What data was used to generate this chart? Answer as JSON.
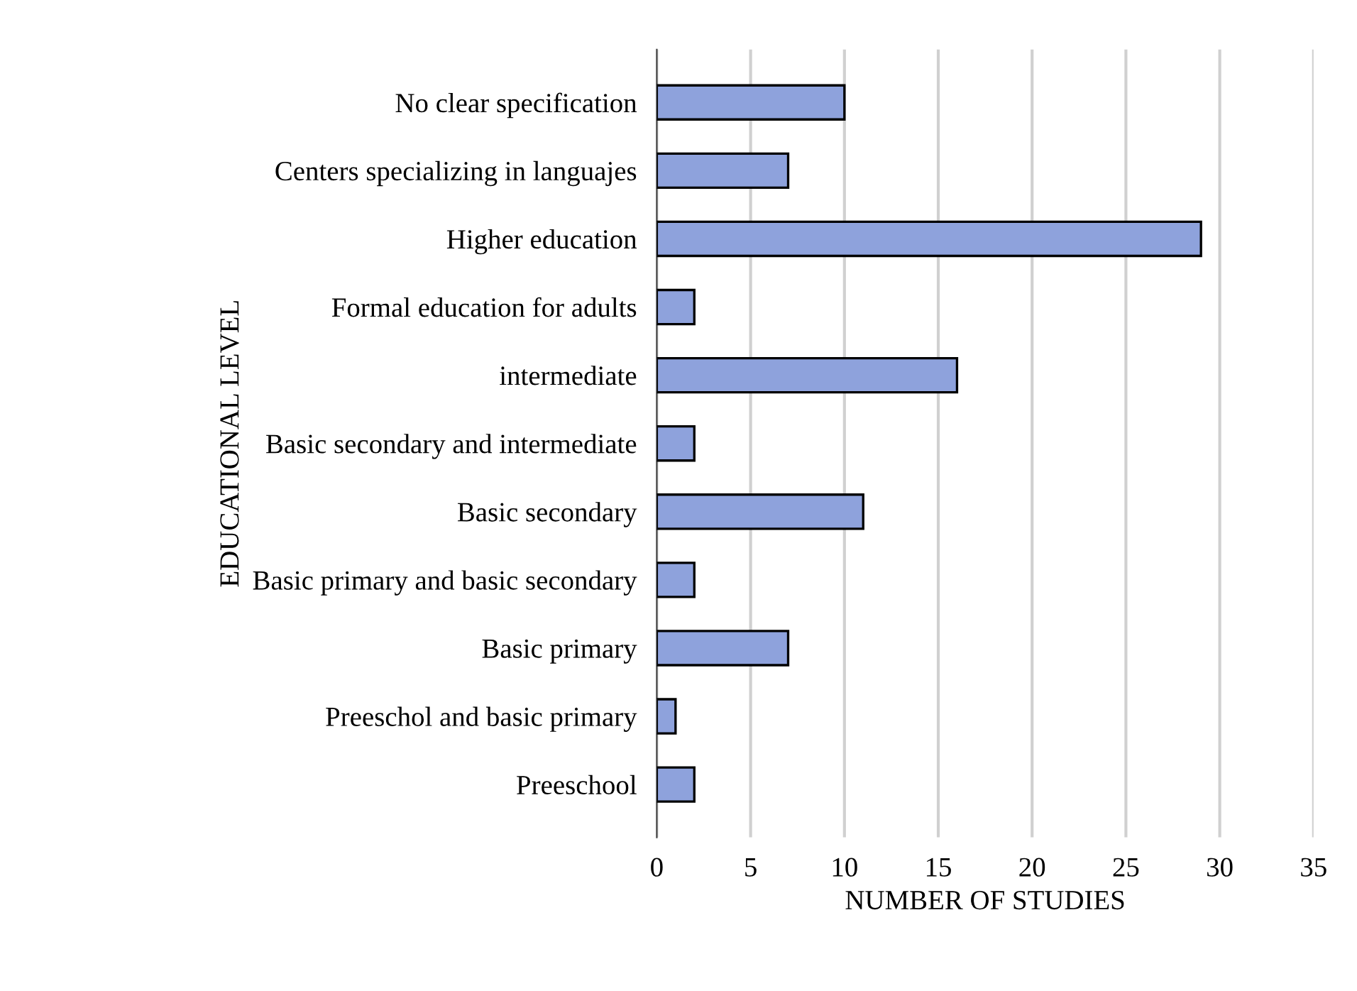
{
  "chart_data": {
    "type": "bar",
    "orientation": "horizontal",
    "xlabel": "NUMBER OF STUDIES",
    "ylabel": "EDUCATIONAL LEVEL",
    "categories": [
      "No clear specification",
      "Centers specializing in languajes",
      "Higher education",
      "Formal education for adults",
      "intermediate",
      "Basic secondary and intermediate",
      "Basic secondary",
      "Basic primary and basic secondary",
      "Basic primary",
      "Preeschol and basic primary",
      "Preeschool"
    ],
    "values": [
      10,
      7,
      29,
      2,
      16,
      2,
      11,
      2,
      7,
      1,
      2
    ],
    "color": "#8ea2dc",
    "xlim": [
      0,
      35
    ],
    "xticks": [
      0,
      5,
      10,
      15,
      20,
      25,
      30,
      35
    ],
    "grid": "x"
  }
}
